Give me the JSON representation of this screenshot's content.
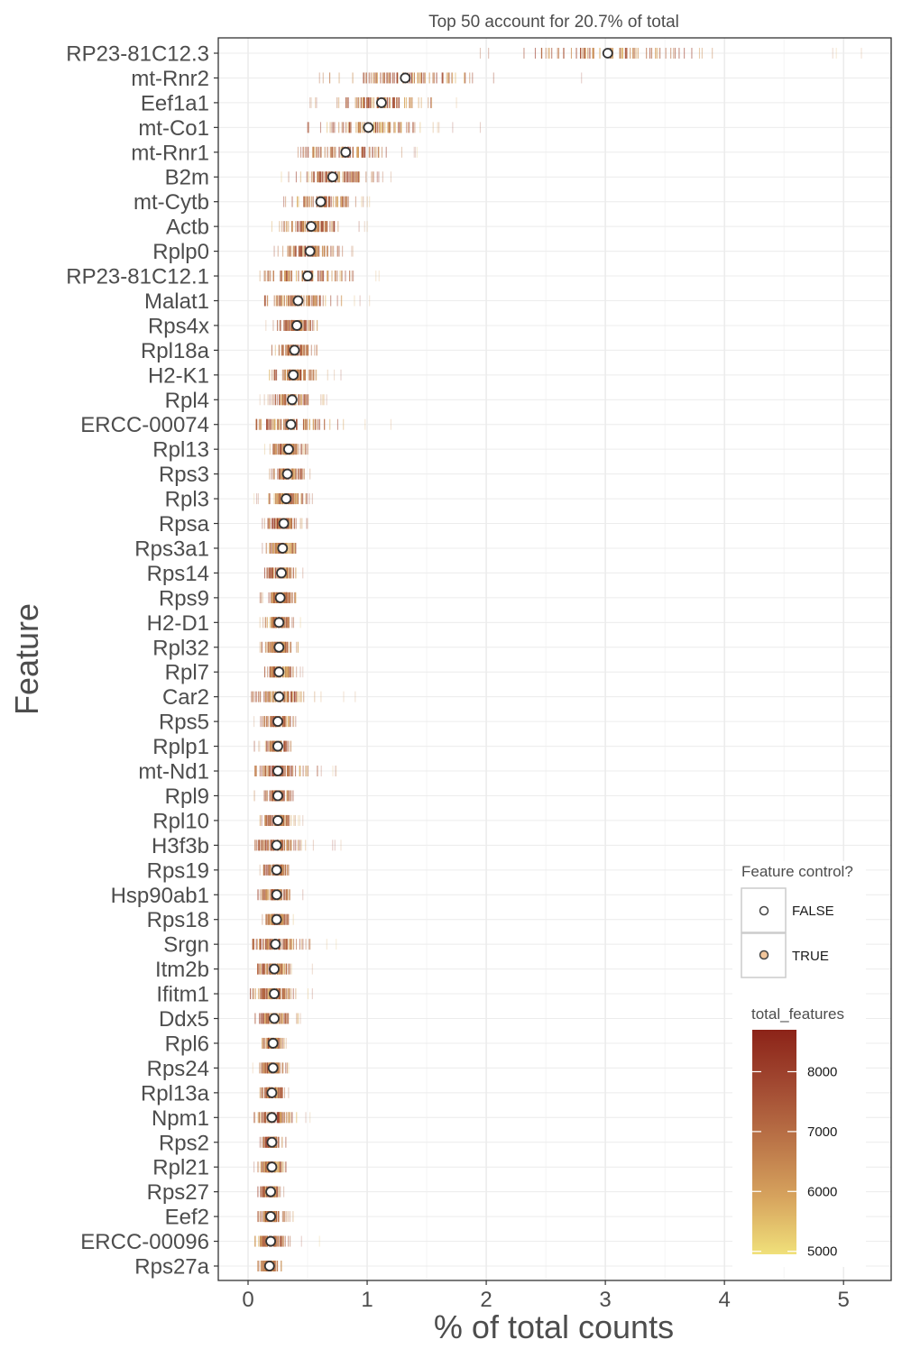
{
  "chart_data": {
    "type": "scatter",
    "title": "Top 50 account for 20.7% of total",
    "xlabel": "% of total counts",
    "ylabel": "Feature",
    "xlim": [
      -0.25,
      5.4
    ],
    "x_ticks": [
      "0",
      "1",
      "2",
      "3",
      "4",
      "5"
    ],
    "grid": true,
    "features": [
      {
        "name": "RP23-81C12.3",
        "mean": 3.02,
        "low": 1.95,
        "high": 5.15,
        "spread": 0.38
      },
      {
        "name": "mt-Rnr2",
        "mean": 1.32,
        "low": 0.6,
        "high": 2.8,
        "spread": 0.3
      },
      {
        "name": "Eef1a1",
        "mean": 1.12,
        "low": 0.52,
        "high": 1.75,
        "spread": 0.2
      },
      {
        "name": "mt-Co1",
        "mean": 1.01,
        "low": 0.5,
        "high": 1.95,
        "spread": 0.2
      },
      {
        "name": "mt-Rnr1",
        "mean": 0.82,
        "low": 0.42,
        "high": 1.42,
        "spread": 0.18
      },
      {
        "name": "B2m",
        "mean": 0.71,
        "low": 0.28,
        "high": 1.2,
        "spread": 0.16
      },
      {
        "name": "mt-Cytb",
        "mean": 0.61,
        "low": 0.3,
        "high": 1.02,
        "spread": 0.14
      },
      {
        "name": "Actb",
        "mean": 0.53,
        "low": 0.2,
        "high": 1.0,
        "spread": 0.14
      },
      {
        "name": "Rplp0",
        "mean": 0.52,
        "low": 0.22,
        "high": 0.88,
        "spread": 0.12
      },
      {
        "name": "RP23-81C12.1",
        "mean": 0.5,
        "low": 0.1,
        "high": 1.1,
        "spread": 0.18
      },
      {
        "name": "Malat1",
        "mean": 0.42,
        "low": 0.14,
        "high": 1.02,
        "spread": 0.16
      },
      {
        "name": "Rps4x",
        "mean": 0.41,
        "low": 0.15,
        "high": 0.58,
        "spread": 0.08
      },
      {
        "name": "Rpl18a",
        "mean": 0.39,
        "low": 0.2,
        "high": 0.58,
        "spread": 0.08
      },
      {
        "name": "H2-K1",
        "mean": 0.38,
        "low": 0.18,
        "high": 0.78,
        "spread": 0.1
      },
      {
        "name": "Rpl4",
        "mean": 0.37,
        "low": 0.1,
        "high": 0.66,
        "spread": 0.08
      },
      {
        "name": "ERCC-00074",
        "mean": 0.36,
        "low": 0.07,
        "high": 1.2,
        "spread": 0.2
      },
      {
        "name": "Rpl13",
        "mean": 0.34,
        "low": 0.14,
        "high": 0.5,
        "spread": 0.07
      },
      {
        "name": "Rps3",
        "mean": 0.33,
        "low": 0.18,
        "high": 0.52,
        "spread": 0.07
      },
      {
        "name": "Rpl3",
        "mean": 0.32,
        "low": 0.05,
        "high": 0.54,
        "spread": 0.08
      },
      {
        "name": "Rpsa",
        "mean": 0.3,
        "low": 0.12,
        "high": 0.5,
        "spread": 0.07
      },
      {
        "name": "Rps3a1",
        "mean": 0.29,
        "low": 0.12,
        "high": 0.4,
        "spread": 0.06
      },
      {
        "name": "Rps14",
        "mean": 0.28,
        "low": 0.14,
        "high": 0.46,
        "spread": 0.06
      },
      {
        "name": "Rps9",
        "mean": 0.27,
        "low": 0.1,
        "high": 0.4,
        "spread": 0.06
      },
      {
        "name": "H2-D1",
        "mean": 0.26,
        "low": 0.1,
        "high": 0.44,
        "spread": 0.06
      },
      {
        "name": "Rpl32",
        "mean": 0.26,
        "low": 0.1,
        "high": 0.42,
        "spread": 0.06
      },
      {
        "name": "Rpl7",
        "mean": 0.26,
        "low": 0.14,
        "high": 0.46,
        "spread": 0.06
      },
      {
        "name": "Car2",
        "mean": 0.26,
        "low": 0.03,
        "high": 0.9,
        "spread": 0.12
      },
      {
        "name": "Rps5",
        "mean": 0.25,
        "low": 0.05,
        "high": 0.4,
        "spread": 0.06
      },
      {
        "name": "Rplp1",
        "mean": 0.25,
        "low": 0.05,
        "high": 0.36,
        "spread": 0.05
      },
      {
        "name": "mt-Nd1",
        "mean": 0.25,
        "low": 0.06,
        "high": 0.74,
        "spread": 0.12
      },
      {
        "name": "Rpl9",
        "mean": 0.25,
        "low": 0.05,
        "high": 0.38,
        "spread": 0.05
      },
      {
        "name": "Rpl10",
        "mean": 0.25,
        "low": 0.1,
        "high": 0.46,
        "spread": 0.06
      },
      {
        "name": "H3f3b",
        "mean": 0.24,
        "low": 0.06,
        "high": 0.78,
        "spread": 0.1
      },
      {
        "name": "Rps19",
        "mean": 0.24,
        "low": 0.1,
        "high": 0.34,
        "spread": 0.05
      },
      {
        "name": "Hsp90ab1",
        "mean": 0.24,
        "low": 0.08,
        "high": 0.46,
        "spread": 0.07
      },
      {
        "name": "Rps18",
        "mean": 0.24,
        "low": 0.12,
        "high": 0.38,
        "spread": 0.05
      },
      {
        "name": "Srgn",
        "mean": 0.23,
        "low": 0.04,
        "high": 0.74,
        "spread": 0.12
      },
      {
        "name": "Itm2b",
        "mean": 0.22,
        "low": 0.08,
        "high": 0.54,
        "spread": 0.07
      },
      {
        "name": "Ifitm1",
        "mean": 0.22,
        "low": 0.02,
        "high": 0.54,
        "spread": 0.1
      },
      {
        "name": "Ddx5",
        "mean": 0.22,
        "low": 0.06,
        "high": 0.44,
        "spread": 0.07
      },
      {
        "name": "Rpl6",
        "mean": 0.21,
        "low": 0.12,
        "high": 0.32,
        "spread": 0.04
      },
      {
        "name": "Rps24",
        "mean": 0.21,
        "low": 0.04,
        "high": 0.34,
        "spread": 0.05
      },
      {
        "name": "Rpl13a",
        "mean": 0.2,
        "low": 0.1,
        "high": 0.34,
        "spread": 0.05
      },
      {
        "name": "Npm1",
        "mean": 0.2,
        "low": 0.05,
        "high": 0.52,
        "spread": 0.08
      },
      {
        "name": "Rps2",
        "mean": 0.2,
        "low": 0.1,
        "high": 0.32,
        "spread": 0.04
      },
      {
        "name": "Rpl21",
        "mean": 0.2,
        "low": 0.05,
        "high": 0.32,
        "spread": 0.05
      },
      {
        "name": "Rps27",
        "mean": 0.19,
        "low": 0.08,
        "high": 0.3,
        "spread": 0.04
      },
      {
        "name": "Eef2",
        "mean": 0.19,
        "low": 0.08,
        "high": 0.38,
        "spread": 0.05
      },
      {
        "name": "ERCC-00096",
        "mean": 0.19,
        "low": 0.06,
        "high": 0.6,
        "spread": 0.08
      },
      {
        "name": "Rps27a",
        "mean": 0.18,
        "low": 0.08,
        "high": 0.28,
        "spread": 0.04
      }
    ],
    "legend": {
      "placement": "right",
      "shape_title": "Feature control?",
      "shape_items": [
        {
          "label": "FALSE",
          "fill": "#ffffff",
          "stroke": "#444444"
        },
        {
          "label": "TRUE",
          "fill": "#f2c69b",
          "stroke": "#444444"
        }
      ],
      "color_title": "total_features",
      "color_ticks": [
        "8000",
        "7000",
        "6000",
        "5000"
      ],
      "color_tick_values": [
        8000,
        7000,
        6000,
        5000
      ],
      "color_range": [
        4950,
        8700
      ],
      "colors": [
        "#f0e07a",
        "#d7a45e",
        "#bb7548",
        "#a24a32",
        "#8c2318"
      ]
    }
  }
}
